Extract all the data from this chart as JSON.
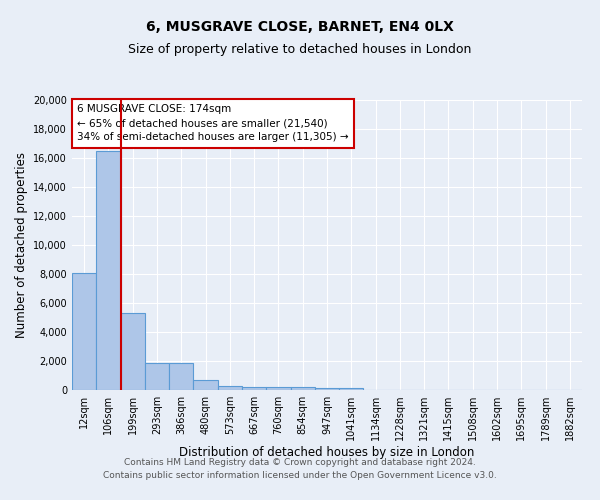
{
  "title": "6, MUSGRAVE CLOSE, BARNET, EN4 0LX",
  "subtitle": "Size of property relative to detached houses in London",
  "xlabel": "Distribution of detached houses by size in London",
  "ylabel": "Number of detached properties",
  "bar_labels": [
    "12sqm",
    "106sqm",
    "199sqm",
    "293sqm",
    "386sqm",
    "480sqm",
    "573sqm",
    "667sqm",
    "760sqm",
    "854sqm",
    "947sqm",
    "1041sqm",
    "1134sqm",
    "1228sqm",
    "1321sqm",
    "1415sqm",
    "1508sqm",
    "1602sqm",
    "1695sqm",
    "1789sqm",
    "1882sqm"
  ],
  "bar_values": [
    8100,
    16500,
    5300,
    1850,
    1850,
    700,
    300,
    230,
    200,
    180,
    150,
    130,
    0,
    0,
    0,
    0,
    0,
    0,
    0,
    0,
    0
  ],
  "bar_color": "#aec6e8",
  "bar_edge_color": "#5b9bd5",
  "background_color": "#e8eef7",
  "grid_color": "#ffffff",
  "annotation_box_color": "#ffffff",
  "annotation_border_color": "#cc0000",
  "vline_x_index": 2,
  "vline_color": "#cc0000",
  "annotation_title": "6 MUSGRAVE CLOSE: 174sqm",
  "annotation_line1": "← 65% of detached houses are smaller (21,540)",
  "annotation_line2": "34% of semi-detached houses are larger (11,305) →",
  "ylim": [
    0,
    20000
  ],
  "yticks": [
    0,
    2000,
    4000,
    6000,
    8000,
    10000,
    12000,
    14000,
    16000,
    18000,
    20000
  ],
  "footer_line1": "Contains HM Land Registry data © Crown copyright and database right 2024.",
  "footer_line2": "Contains public sector information licensed under the Open Government Licence v3.0.",
  "title_fontsize": 10,
  "subtitle_fontsize": 9,
  "axis_label_fontsize": 8.5,
  "tick_fontsize": 7,
  "annotation_fontsize": 7.5,
  "footer_fontsize": 6.5
}
